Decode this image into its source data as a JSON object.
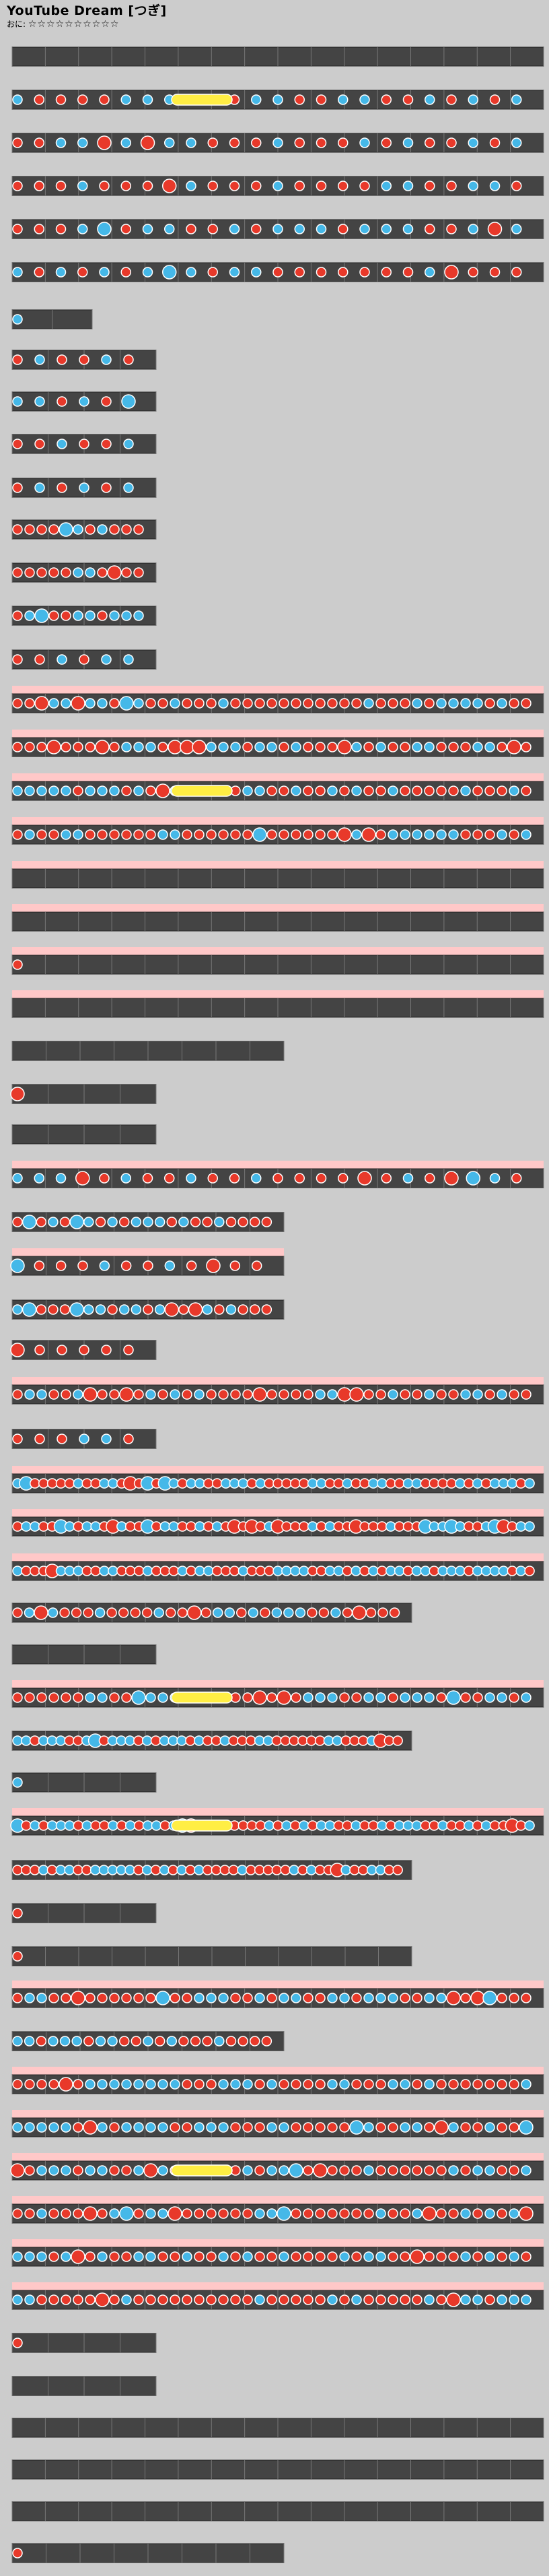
{
  "song": {
    "title": "YouTube Dream [つぎ]",
    "difficulty_label": "おに",
    "stars": "☆☆☆☆☆☆☆☆☆☆"
  },
  "colors": {
    "background": "#cccccc",
    "lane": "#444444",
    "lane_border": "#222222",
    "beat_line": "#777777",
    "highlight": "#ffc8c8",
    "don": "#e8392a",
    "ka": "#45b8e8",
    "roll": "#ffee44",
    "marker_red": "#d40000",
    "marker_blue": "#2020d0"
  },
  "legend": {
    "don_note": "red-circle-icon",
    "ka_note": "blue-circle-icon",
    "roll_note": "yellow-bar-icon"
  }
}
